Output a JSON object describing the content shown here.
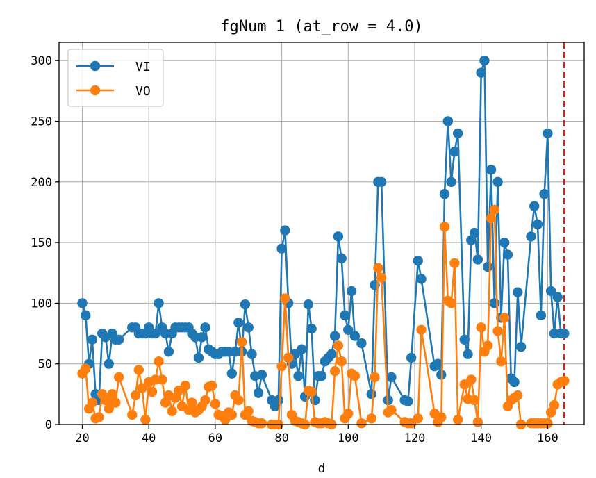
{
  "chart_data": {
    "type": "line",
    "title": "fgNum 1 (at_row = 4.0)",
    "xlabel": "d",
    "ylabel": "",
    "xlim": [
      13,
      171
    ],
    "ylim": [
      0,
      315
    ],
    "xticks": [
      20,
      40,
      60,
      80,
      100,
      120,
      140,
      160
    ],
    "yticks": [
      0,
      50,
      100,
      150,
      200,
      250,
      300
    ],
    "grid": true,
    "legend": "top-left",
    "vline": {
      "x": 165,
      "color": "#e41a1c",
      "style": "dashed"
    },
    "series": [
      {
        "name": "VI",
        "color": "#1f77b4",
        "points": [
          [
            20,
            100
          ],
          [
            21,
            90
          ],
          [
            22,
            50
          ],
          [
            23,
            70
          ],
          [
            24,
            25
          ],
          [
            25,
            20
          ],
          [
            26,
            75
          ],
          [
            27,
            72
          ],
          [
            28,
            50
          ],
          [
            29,
            75
          ],
          [
            30,
            70
          ],
          [
            31,
            70
          ],
          [
            35,
            80
          ],
          [
            36,
            80
          ],
          [
            37,
            75
          ],
          [
            38,
            75
          ],
          [
            39,
            75
          ],
          [
            40,
            80
          ],
          [
            41,
            75
          ],
          [
            42,
            75
          ],
          [
            43,
            100
          ],
          [
            44,
            80
          ],
          [
            45,
            75
          ],
          [
            46,
            60
          ],
          [
            47,
            75
          ],
          [
            48,
            80
          ],
          [
            49,
            80
          ],
          [
            50,
            80
          ],
          [
            51,
            80
          ],
          [
            52,
            80
          ],
          [
            53,
            75
          ],
          [
            54,
            72
          ],
          [
            55,
            55
          ],
          [
            56,
            72
          ],
          [
            57,
            80
          ],
          [
            58,
            62
          ],
          [
            59,
            60
          ],
          [
            60,
            58
          ],
          [
            61,
            58
          ],
          [
            62,
            60
          ],
          [
            63,
            60
          ],
          [
            64,
            60
          ],
          [
            65,
            42
          ],
          [
            66,
            60
          ],
          [
            67,
            84
          ],
          [
            68,
            60
          ],
          [
            69,
            99
          ],
          [
            70,
            80
          ],
          [
            71,
            58
          ],
          [
            72,
            40
          ],
          [
            73,
            26
          ],
          [
            74,
            41
          ],
          [
            77,
            20
          ],
          [
            78,
            15
          ],
          [
            79,
            20
          ],
          [
            80,
            145
          ],
          [
            81,
            160
          ],
          [
            82,
            100
          ],
          [
            83,
            50
          ],
          [
            84,
            58
          ],
          [
            85,
            40
          ],
          [
            86,
            62
          ],
          [
            87,
            23
          ],
          [
            88,
            99
          ],
          [
            89,
            79
          ],
          [
            90,
            20
          ],
          [
            91,
            40
          ],
          [
            92,
            40
          ],
          [
            93,
            52
          ],
          [
            94,
            55
          ],
          [
            95,
            58
          ],
          [
            96,
            73
          ],
          [
            97,
            155
          ],
          [
            98,
            137
          ],
          [
            99,
            90
          ],
          [
            100,
            78
          ],
          [
            101,
            110
          ],
          [
            102,
            73
          ],
          [
            104,
            67
          ],
          [
            107,
            25
          ],
          [
            108,
            115
          ],
          [
            109,
            200
          ],
          [
            110,
            200
          ],
          [
            112,
            20
          ],
          [
            113,
            39
          ],
          [
            117,
            20
          ],
          [
            118,
            19
          ],
          [
            119,
            55
          ],
          [
            121,
            135
          ],
          [
            122,
            120
          ],
          [
            126,
            48
          ],
          [
            127,
            50
          ],
          [
            128,
            41
          ],
          [
            129,
            190
          ],
          [
            130,
            250
          ],
          [
            131,
            200
          ],
          [
            132,
            225
          ],
          [
            133,
            240
          ],
          [
            135,
            70
          ],
          [
            136,
            58
          ],
          [
            137,
            152
          ],
          [
            138,
            158
          ],
          [
            139,
            136
          ],
          [
            140,
            290
          ],
          [
            141,
            300
          ],
          [
            142,
            130
          ],
          [
            143,
            210
          ],
          [
            144,
            100
          ],
          [
            145,
            200
          ],
          [
            146,
            88
          ],
          [
            147,
            150
          ],
          [
            148,
            140
          ],
          [
            149,
            38
          ],
          [
            150,
            35
          ],
          [
            151,
            109
          ],
          [
            152,
            64
          ],
          [
            155,
            155
          ],
          [
            156,
            180
          ],
          [
            157,
            165
          ],
          [
            158,
            90
          ],
          [
            159,
            190
          ],
          [
            160,
            240
          ],
          [
            161,
            110
          ],
          [
            162,
            75
          ],
          [
            163,
            105
          ],
          [
            164,
            75
          ],
          [
            165,
            75
          ]
        ]
      },
      {
        "name": "VO",
        "color": "#ff7f0e",
        "points": [
          [
            20,
            42
          ],
          [
            21,
            46
          ],
          [
            22,
            13
          ],
          [
            23,
            18
          ],
          [
            24,
            5
          ],
          [
            25,
            6
          ],
          [
            26,
            25
          ],
          [
            27,
            20
          ],
          [
            28,
            13
          ],
          [
            29,
            25
          ],
          [
            30,
            18
          ],
          [
            31,
            39
          ],
          [
            35,
            8
          ],
          [
            36,
            24
          ],
          [
            37,
            45
          ],
          [
            38,
            30
          ],
          [
            39,
            4
          ],
          [
            40,
            35
          ],
          [
            41,
            27
          ],
          [
            42,
            37
          ],
          [
            43,
            52
          ],
          [
            44,
            37
          ],
          [
            45,
            18
          ],
          [
            46,
            24
          ],
          [
            47,
            11
          ],
          [
            48,
            22
          ],
          [
            49,
            28
          ],
          [
            50,
            15
          ],
          [
            51,
            32
          ],
          [
            52,
            12
          ],
          [
            53,
            18
          ],
          [
            54,
            10
          ],
          [
            55,
            12
          ],
          [
            56,
            15
          ],
          [
            57,
            20
          ],
          [
            58,
            31
          ],
          [
            59,
            32
          ],
          [
            60,
            17
          ],
          [
            61,
            8
          ],
          [
            62,
            7
          ],
          [
            63,
            4
          ],
          [
            64,
            10
          ],
          [
            65,
            8
          ],
          [
            66,
            24
          ],
          [
            67,
            20
          ],
          [
            68,
            68
          ],
          [
            69,
            8
          ],
          [
            70,
            11
          ],
          [
            71,
            3
          ],
          [
            72,
            2
          ],
          [
            73,
            1
          ],
          [
            74,
            1
          ],
          [
            77,
            0
          ],
          [
            78,
            0
          ],
          [
            79,
            0
          ],
          [
            80,
            48
          ],
          [
            81,
            104
          ],
          [
            82,
            55
          ],
          [
            83,
            8
          ],
          [
            84,
            3
          ],
          [
            85,
            2
          ],
          [
            86,
            1
          ],
          [
            87,
            0
          ],
          [
            88,
            28
          ],
          [
            89,
            27
          ],
          [
            90,
            2
          ],
          [
            91,
            1
          ],
          [
            92,
            1
          ],
          [
            93,
            2
          ],
          [
            94,
            1
          ],
          [
            95,
            0
          ],
          [
            96,
            44
          ],
          [
            97,
            65
          ],
          [
            98,
            52
          ],
          [
            99,
            5
          ],
          [
            100,
            9
          ],
          [
            101,
            42
          ],
          [
            102,
            40
          ],
          [
            104,
            1
          ],
          [
            107,
            5
          ],
          [
            108,
            39
          ],
          [
            109,
            129
          ],
          [
            110,
            121
          ],
          [
            112,
            10
          ],
          [
            113,
            12
          ],
          [
            117,
            2
          ],
          [
            118,
            1
          ],
          [
            119,
            1
          ],
          [
            121,
            5
          ],
          [
            122,
            78
          ],
          [
            126,
            9
          ],
          [
            127,
            2
          ],
          [
            128,
            6
          ],
          [
            129,
            163
          ],
          [
            130,
            102
          ],
          [
            131,
            100
          ],
          [
            132,
            133
          ],
          [
            133,
            4
          ],
          [
            135,
            33
          ],
          [
            136,
            21
          ],
          [
            137,
            37
          ],
          [
            138,
            20
          ],
          [
            139,
            2
          ],
          [
            140,
            80
          ],
          [
            141,
            60
          ],
          [
            142,
            65
          ],
          [
            143,
            170
          ],
          [
            144,
            177
          ],
          [
            145,
            77
          ],
          [
            146,
            52
          ],
          [
            147,
            88
          ],
          [
            148,
            15
          ],
          [
            149,
            20
          ],
          [
            150,
            22
          ],
          [
            151,
            24
          ],
          [
            152,
            0
          ],
          [
            155,
            1
          ],
          [
            156,
            1
          ],
          [
            157,
            1
          ],
          [
            158,
            1
          ],
          [
            159,
            1
          ],
          [
            160,
            1
          ],
          [
            161,
            10
          ],
          [
            162,
            16
          ],
          [
            163,
            33
          ],
          [
            164,
            35
          ],
          [
            165,
            36
          ]
        ]
      }
    ]
  }
}
